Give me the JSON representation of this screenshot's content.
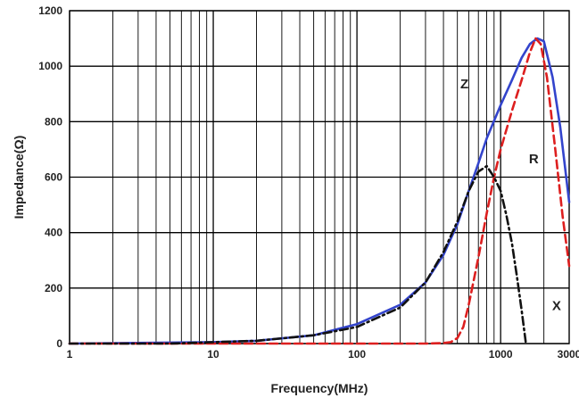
{
  "chart_data": {
    "type": "line",
    "title": "",
    "xlabel": "Frequency(MHz)",
    "ylabel": "Impedance(Ω)",
    "xscale": "log",
    "xlim": [
      1,
      3000
    ],
    "ylim": [
      0,
      1200
    ],
    "grid": true,
    "x_ticks": [
      {
        "value": 1,
        "label": "1"
      },
      {
        "value": 10,
        "label": "10"
      },
      {
        "value": 100,
        "label": "100"
      },
      {
        "value": 1000,
        "label": "1000"
      },
      {
        "value": 3000,
        "label": "3000"
      }
    ],
    "y_ticks": [
      {
        "value": 0,
        "label": "0"
      },
      {
        "value": 200,
        "label": "200"
      },
      {
        "value": 400,
        "label": "400"
      },
      {
        "value": 600,
        "label": "600"
      },
      {
        "value": 800,
        "label": "800"
      },
      {
        "value": 1000,
        "label": "1000"
      },
      {
        "value": 1200,
        "label": "1200"
      }
    ],
    "series": [
      {
        "name": "Z",
        "color": "#3344cc",
        "style": "solid",
        "label_at": [
          560,
          920
        ],
        "points": [
          [
            1,
            0
          ],
          [
            10,
            5
          ],
          [
            20,
            10
          ],
          [
            50,
            30
          ],
          [
            100,
            70
          ],
          [
            200,
            140
          ],
          [
            300,
            220
          ],
          [
            400,
            320
          ],
          [
            500,
            430
          ],
          [
            600,
            550
          ],
          [
            700,
            650
          ],
          [
            800,
            740
          ],
          [
            1000,
            860
          ],
          [
            1200,
            950
          ],
          [
            1400,
            1030
          ],
          [
            1600,
            1080
          ],
          [
            1800,
            1100
          ],
          [
            2000,
            1090
          ],
          [
            2300,
            960
          ],
          [
            2600,
            780
          ],
          [
            3000,
            510
          ]
        ]
      },
      {
        "name": "R",
        "color": "#dd1f1f",
        "style": "dashed",
        "label_at": [
          1700,
          650
        ],
        "points": [
          [
            1,
            0
          ],
          [
            100,
            0
          ],
          [
            300,
            0
          ],
          [
            400,
            2
          ],
          [
            450,
            5
          ],
          [
            500,
            20
          ],
          [
            550,
            60
          ],
          [
            600,
            140
          ],
          [
            700,
            310
          ],
          [
            800,
            470
          ],
          [
            900,
            600
          ],
          [
            1000,
            700
          ],
          [
            1200,
            840
          ],
          [
            1400,
            950
          ],
          [
            1600,
            1050
          ],
          [
            1750,
            1100
          ],
          [
            1900,
            1080
          ],
          [
            2100,
            960
          ],
          [
            2400,
            700
          ],
          [
            2700,
            460
          ],
          [
            3000,
            280
          ]
        ]
      },
      {
        "name": "X",
        "color": "#111111",
        "style": "dashdot",
        "label_at": [
          2450,
          120
        ],
        "points": [
          [
            1,
            0
          ],
          [
            5,
            0
          ],
          [
            10,
            5
          ],
          [
            20,
            10
          ],
          [
            50,
            30
          ],
          [
            100,
            60
          ],
          [
            200,
            130
          ],
          [
            300,
            220
          ],
          [
            400,
            330
          ],
          [
            500,
            440
          ],
          [
            600,
            550
          ],
          [
            700,
            620
          ],
          [
            800,
            640
          ],
          [
            900,
            600
          ],
          [
            1000,
            550
          ],
          [
            1100,
            460
          ],
          [
            1200,
            360
          ],
          [
            1300,
            240
          ],
          [
            1400,
            120
          ],
          [
            1500,
            0
          ]
        ]
      }
    ]
  }
}
